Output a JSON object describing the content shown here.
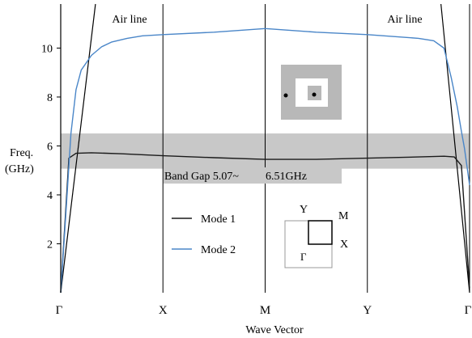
{
  "chart_data": {
    "type": "line",
    "title": "",
    "xlabel": "Wave Vector",
    "ylabel_line1": "Freq.",
    "ylabel_line2": "(GHz)",
    "ylim": [
      0,
      11.8
    ],
    "y_ticks": [
      {
        "value": 2,
        "label": "2"
      },
      {
        "value": 4,
        "label": "4"
      },
      {
        "value": 6,
        "label": "6"
      },
      {
        "value": 8,
        "label": "8"
      },
      {
        "value": 10,
        "label": "10"
      }
    ],
    "x_points": [
      {
        "label": "Γ",
        "pos": 0
      },
      {
        "label": "X",
        "pos": 1
      },
      {
        "label": "M",
        "pos": 2
      },
      {
        "label": "Y",
        "pos": 3
      },
      {
        "label": "Γ",
        "pos": 4
      }
    ],
    "series": [
      {
        "name": "Mode 1",
        "color": "#1a1a1a",
        "x": [
          0,
          0.08,
          0.15,
          0.3,
          0.6,
          1.0,
          1.5,
          2.0,
          2.5,
          3.0,
          3.5,
          3.75,
          3.85,
          3.92,
          4.0
        ],
        "y": [
          0.0,
          5.5,
          5.7,
          5.72,
          5.68,
          5.6,
          5.52,
          5.45,
          5.45,
          5.5,
          5.55,
          5.58,
          5.55,
          5.2,
          0.2
        ]
      },
      {
        "name": "Mode 2",
        "color": "#4a86c8",
        "x": [
          0,
          0.05,
          0.1,
          0.15,
          0.2,
          0.3,
          0.4,
          0.5,
          0.65,
          0.8,
          1.0,
          1.5,
          2.0,
          2.5,
          3.0,
          3.5,
          3.65,
          3.75,
          3.82,
          3.88,
          3.92,
          3.95,
          3.98,
          4.0
        ],
        "y": [
          0.0,
          3.2,
          6.5,
          8.3,
          9.1,
          9.7,
          10.05,
          10.25,
          10.4,
          10.5,
          10.55,
          10.65,
          10.8,
          10.65,
          10.55,
          10.4,
          10.3,
          10.0,
          8.8,
          7.6,
          6.6,
          5.9,
          5.0,
          4.4
        ]
      }
    ],
    "air_lines": {
      "label": "Air line",
      "left": {
        "x0": 0,
        "y0": 0,
        "x1": 0.34,
        "y1": 11.8
      },
      "right": {
        "x0": 3.72,
        "y0": 11.8,
        "x1": 4.0,
        "y1": 0
      }
    },
    "band_gap": {
      "label": "Band Gap 5.07~",
      "label2": "6.51GHz",
      "from": 5.07,
      "to": 6.51,
      "color": "#c8c8c8"
    },
    "legend": {
      "placement": "bottom-center"
    },
    "brillouin_labels": {
      "y": "Y",
      "m": "M",
      "x": "X",
      "gamma": "Γ"
    },
    "grid": false
  }
}
